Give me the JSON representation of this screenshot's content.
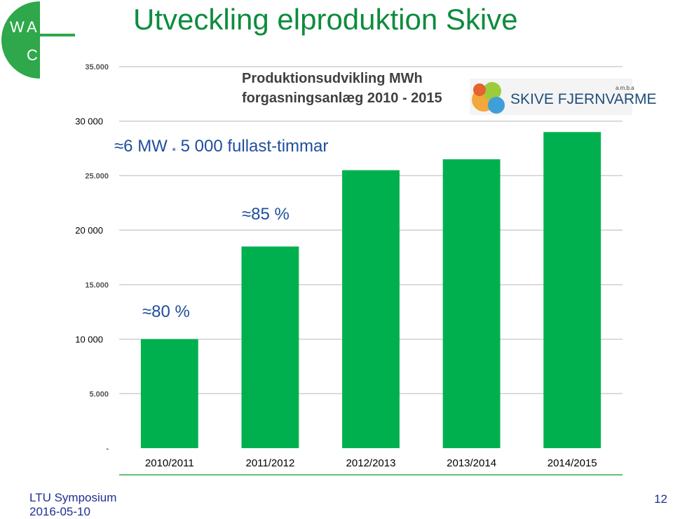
{
  "slide": {
    "title": "Utveckling elproduktion Skive",
    "footer_line1": "LTU Symposium",
    "footer_line2": "2016-05-10",
    "page_number": "12",
    "logo_letters": [
      "W",
      "A",
      "C"
    ]
  },
  "chart_data": {
    "type": "bar",
    "title_line1": "Produktionsudvikling MWh",
    "title_line2": "forgasningsanlæg  2010 - 2015",
    "categories": [
      "2010/2011",
      "2011/2012",
      "2012/2013",
      "2013/2014",
      "2014/2015"
    ],
    "values": [
      10000,
      18500,
      25500,
      26500,
      29000
    ],
    "ylim": [
      0,
      35000
    ],
    "original_ticks": [
      "-",
      "5.000",
      "15.000",
      "25.000",
      "35.000"
    ],
    "original_tick_values": [
      0,
      5000,
      15000,
      25000,
      35000
    ],
    "overlay_ticks": [
      "10 000",
      "20 000",
      "30 000"
    ],
    "overlay_tick_values": [
      10000,
      20000,
      30000
    ],
    "grid": true,
    "bar_color": "#00b04f",
    "brand": "SKIVE FJERNVARME",
    "brand_sub": "a.m.b.a",
    "annotations": [
      {
        "text": "≈6 MW",
        "star": "*",
        "rest": "5 000 fullast-timmar"
      },
      {
        "text": "≈85 %"
      },
      {
        "text": "≈80 %"
      }
    ]
  }
}
